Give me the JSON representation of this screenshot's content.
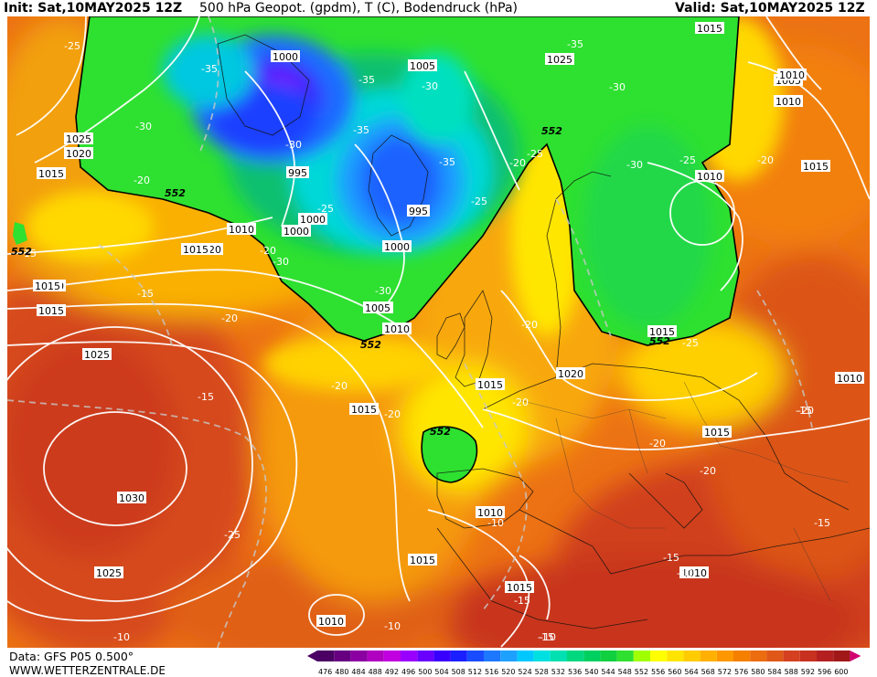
{
  "header": {
    "init": "Init: Sat,10MAY2025 12Z",
    "title": "500 hPa Geopot. (gpdm), T (C), Bodendruck (hPa)",
    "valid": "Valid: Sat,10MAY2025 12Z"
  },
  "footer": {
    "data_source": "Data: GFS P05 0.500°",
    "website": "WWW.WETTERZENTRALE.DE"
  },
  "legend": {
    "values": [
      "476",
      "480",
      "484",
      "488",
      "492",
      "496",
      "500",
      "504",
      "508",
      "512",
      "516",
      "520",
      "524",
      "528",
      "532",
      "536",
      "540",
      "544",
      "548",
      "552",
      "556",
      "560",
      "564",
      "568",
      "572",
      "576",
      "580",
      "584",
      "588",
      "592",
      "596",
      "600"
    ],
    "colors": [
      "#4b0064",
      "#660080",
      "#8a00a0",
      "#b000c0",
      "#c000e0",
      "#9a00ff",
      "#6a00ff",
      "#3a00ff",
      "#1a20ff",
      "#1a4cff",
      "#1e78ff",
      "#1ea0ff",
      "#00c8ff",
      "#00e0e0",
      "#00e0b0",
      "#00d880",
      "#00d060",
      "#10d040",
      "#30e030",
      "#a0ff00",
      "#ffff00",
      "#ffe400",
      "#ffcc00",
      "#ffb000",
      "#ff9800",
      "#f58000",
      "#ec6c10",
      "#e05818",
      "#d44020",
      "#c83020",
      "#b42020",
      "#a01818",
      "#d00070"
    ]
  },
  "map": {
    "background": "#e86a14",
    "pressure_labels": [
      "1000",
      "1005",
      "1015",
      "1025",
      "1005",
      "1010",
      "1025",
      "1020",
      "1015",
      "1010",
      "1015",
      "1020",
      "1010",
      "1015",
      "1025",
      "1000",
      "995",
      "1000",
      "995",
      "1000",
      "1005",
      "1010",
      "1010",
      "1015",
      "1020",
      "1015",
      "1015",
      "1015",
      "1030",
      "1025",
      "1010",
      "1010",
      "1015",
      "1015",
      "1010",
      "1010",
      "1015",
      "1010",
      "1015",
      "1005",
      "1015"
    ],
    "temp_labels": [
      "-25",
      "-35",
      "-30",
      "-30",
      "-35",
      "-30",
      "-25",
      "-30",
      "-35",
      "-35",
      "-30",
      "-20",
      "-30",
      "-25",
      "-35",
      "-25",
      "-20",
      "-20",
      "-25",
      "-20",
      "-30",
      "-15",
      "-20",
      "-20",
      "-20",
      "-15",
      "-20",
      "-20",
      "-20",
      "-25",
      "-20",
      "-20",
      "-25",
      "-15",
      "-15",
      "-15",
      "-15",
      "-10",
      "-10",
      "-15",
      "-10",
      "-10",
      "-15",
      "-10"
    ],
    "gpdm_labels": [
      "552",
      "552",
      "552",
      "552",
      "552",
      "552"
    ]
  }
}
